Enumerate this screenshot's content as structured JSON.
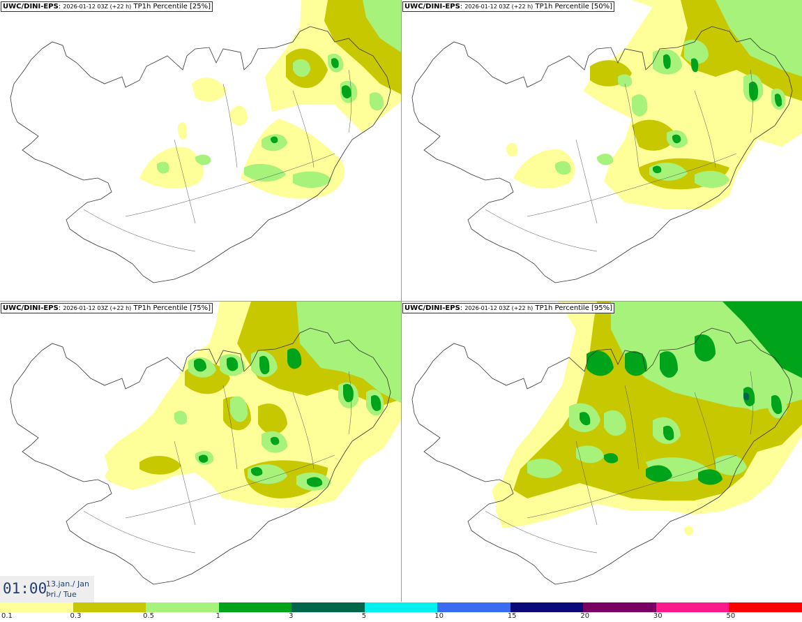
{
  "panels": [
    {
      "model": "UWC/DINI-EPS",
      "run": "2026-01-12 03Z (+22 h)",
      "field": "TP1h Percentile [25%]"
    },
    {
      "model": "UWC/DINI-EPS",
      "run": "2026-01-12 03Z (+22 h)",
      "field": "TP1h Percentile [50%]"
    },
    {
      "model": "UWC/DINI-EPS",
      "run": "2026-01-12 03Z (+22 h)",
      "field": "TP1h Percentile [75%]"
    },
    {
      "model": "UWC/DINI-EPS",
      "run": "2026-01-12 03Z (+22 h)",
      "field": "TP1h Percentile [95%]"
    }
  ],
  "valid_time": {
    "time": "01:00",
    "date": "13.jan./ Jan",
    "day": "Þri./ Tue"
  },
  "legend": {
    "labels": [
      "0.1",
      "0.3",
      "0.5",
      "1",
      "3",
      "5",
      "10",
      "15",
      "20",
      "30",
      "50"
    ],
    "colors": [
      "#ffff99",
      "#c8c800",
      "#a6f27a",
      "#00a41a",
      "#00664a",
      "#00f0f0",
      "#3a6cf0",
      "#0a0a78",
      "#7a0064",
      "#ff1a8c",
      "#ff0000"
    ]
  }
}
